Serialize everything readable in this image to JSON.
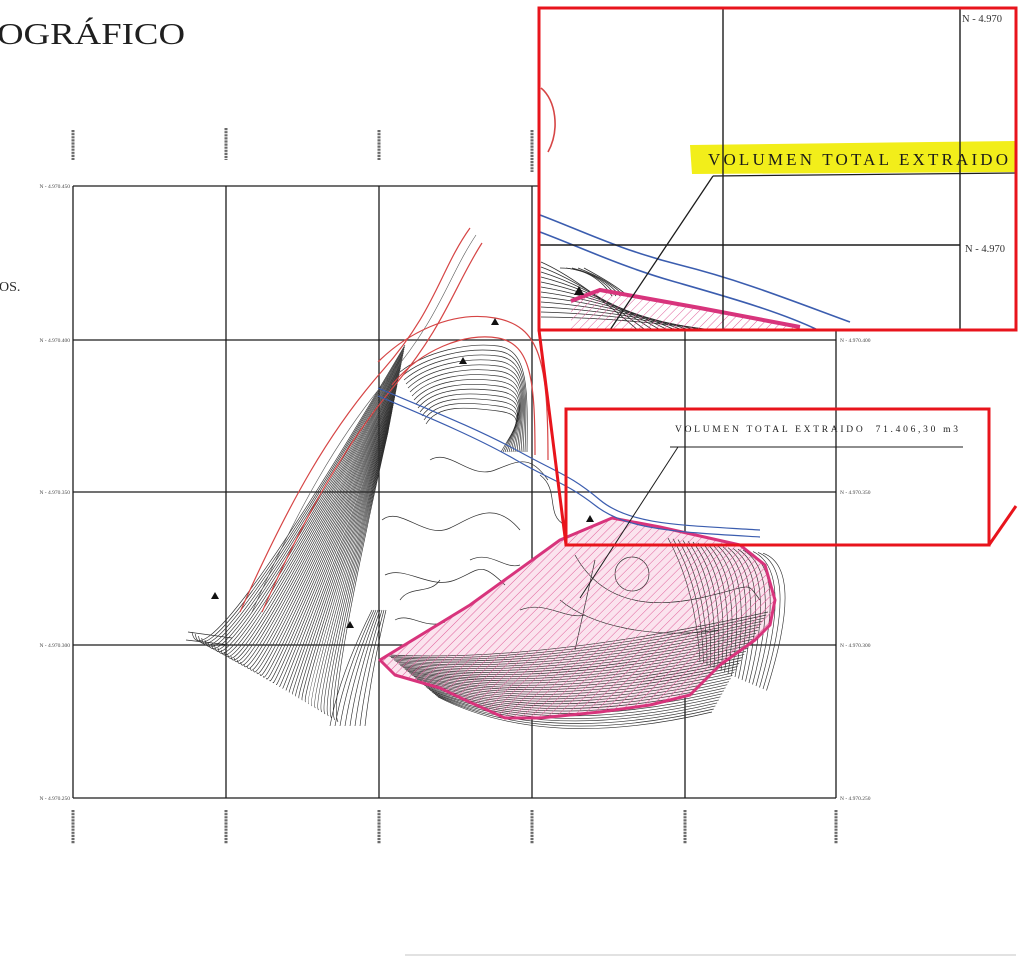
{
  "title": "OGRÁFICO",
  "side_note": "OS.",
  "map": {
    "northing_labels_left": [
      "N - 4.970.450",
      "N - 4.970.400",
      "N - 4.970.350",
      "N - 4.970.300",
      "N - 4.970.250"
    ],
    "northing_labels_right": [
      "N - 4.970.400",
      "N - 4.970.350",
      "N - 4.970.300",
      "N - 4.970.250"
    ],
    "volume_label": "VOLUMEN TOTAL EXTRAIDO  71.406,30 m3"
  },
  "inset": {
    "northing_labels": [
      "N - 4.970",
      "N - 4.970"
    ],
    "highlighted_label": "VOLUMEN TOTAL EXTRAIDO"
  },
  "colors": {
    "zoom_outline": "#e8141c",
    "extraction_area": "#d8347c",
    "road": "#d64545",
    "watercourse": "#3b5daf",
    "highlight": "#f2ee1a",
    "grid": "#1c1c1c"
  }
}
